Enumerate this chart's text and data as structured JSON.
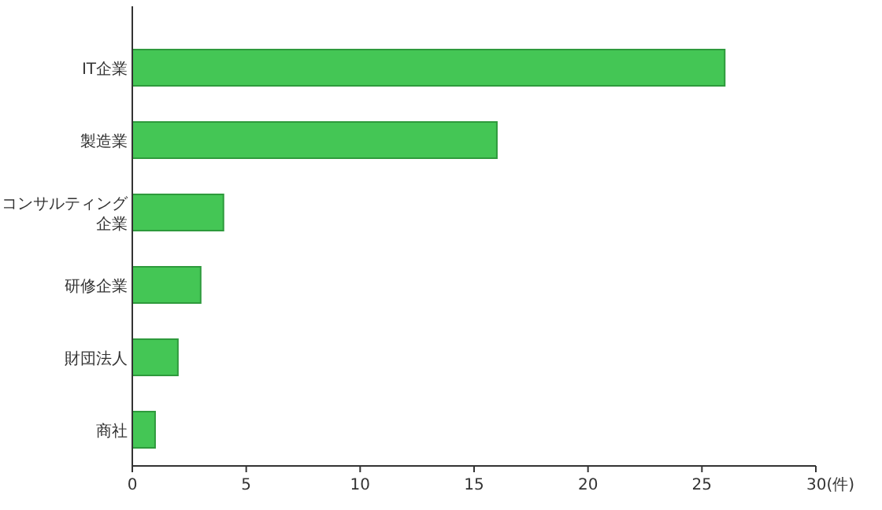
{
  "chart_data": {
    "type": "bar",
    "orientation": "horizontal",
    "categories": [
      "IT企業",
      "製造業",
      "コンサルティング企業",
      "研修企業",
      "財団法人",
      "商社"
    ],
    "values": [
      26,
      16,
      4,
      3,
      2,
      1
    ],
    "color": "#44c655",
    "xlim": [
      0,
      30
    ],
    "xticks": [
      0,
      5,
      10,
      15,
      20,
      25,
      {
        "value": 30,
        "label": "30(件)"
      }
    ],
    "grid": false
  }
}
